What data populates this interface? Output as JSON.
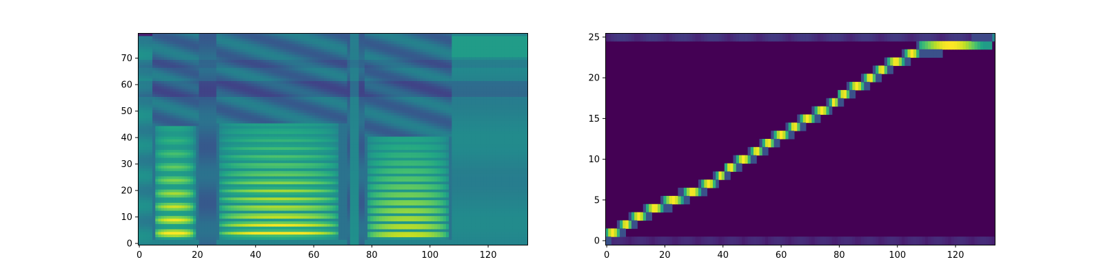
{
  "chart_data": [
    {
      "type": "heatmap",
      "title": "",
      "xlabel": "",
      "ylabel": "",
      "xlim": [
        -0.5,
        133.5
      ],
      "ylim": [
        -0.5,
        79.5
      ],
      "n_frames": 134,
      "n_bins": 80,
      "colormap": "viridis",
      "grid": false,
      "xticks": [
        0,
        20,
        40,
        60,
        80,
        100,
        120
      ],
      "xtick_labels": [
        "0",
        "20",
        "40",
        "60",
        "80",
        "100",
        "120"
      ],
      "yticks": [
        0,
        10,
        20,
        30,
        40,
        50,
        60,
        70
      ],
      "ytick_labels": [
        "0",
        "10",
        "20",
        "30",
        "40",
        "50",
        "60",
        "70"
      ],
      "voiced_segments": [
        {
          "start": 5,
          "end": 20,
          "f0_bin": 4,
          "harmonic_spacing": 5,
          "top_bin": 44
        },
        {
          "start": 27,
          "end": 71,
          "f0_bin": 4,
          "harmonic_spacing": 3.2,
          "top_bin": 45
        },
        {
          "start": 78,
          "end": 108,
          "f0_bin": 3.5,
          "harmonic_spacing": 3.0,
          "top_bin": 40
        }
      ],
      "silence_segments": [
        {
          "start": 108,
          "end": 134
        }
      ],
      "bright_color": "#fde725",
      "dark_color": "#440154"
    },
    {
      "type": "heatmap",
      "title": "",
      "xlabel": "",
      "ylabel": "",
      "xlim": [
        -0.5,
        133.5
      ],
      "ylim": [
        -0.5,
        25.5
      ],
      "n_frames": 134,
      "n_tokens": 26,
      "colormap": "viridis",
      "grid": false,
      "xticks": [
        0,
        20,
        40,
        60,
        80,
        100,
        120
      ],
      "xtick_labels": [
        "0",
        "20",
        "40",
        "60",
        "80",
        "100",
        "120"
      ],
      "yticks": [
        0,
        5,
        10,
        15,
        20,
        25
      ],
      "ytick_labels": [
        "0",
        "5",
        "10",
        "15",
        "20",
        "25"
      ],
      "alignment_path": [
        [
          0,
          1
        ],
        [
          5,
          2
        ],
        [
          9,
          3
        ],
        [
          14,
          4
        ],
        [
          20,
          5
        ],
        [
          27,
          6
        ],
        [
          33,
          7
        ],
        [
          38,
          8
        ],
        [
          41,
          9
        ],
        [
          45,
          10
        ],
        [
          50,
          11
        ],
        [
          54,
          12
        ],
        [
          58,
          13
        ],
        [
          63,
          14
        ],
        [
          67,
          15
        ],
        [
          72,
          16
        ],
        [
          77,
          17
        ],
        [
          80,
          18
        ],
        [
          84,
          19
        ],
        [
          89,
          20
        ],
        [
          93,
          21
        ],
        [
          97,
          22
        ],
        [
          103,
          23
        ],
        [
          108,
          24
        ],
        [
          133,
          24
        ]
      ],
      "background_color": "#440154"
    }
  ]
}
